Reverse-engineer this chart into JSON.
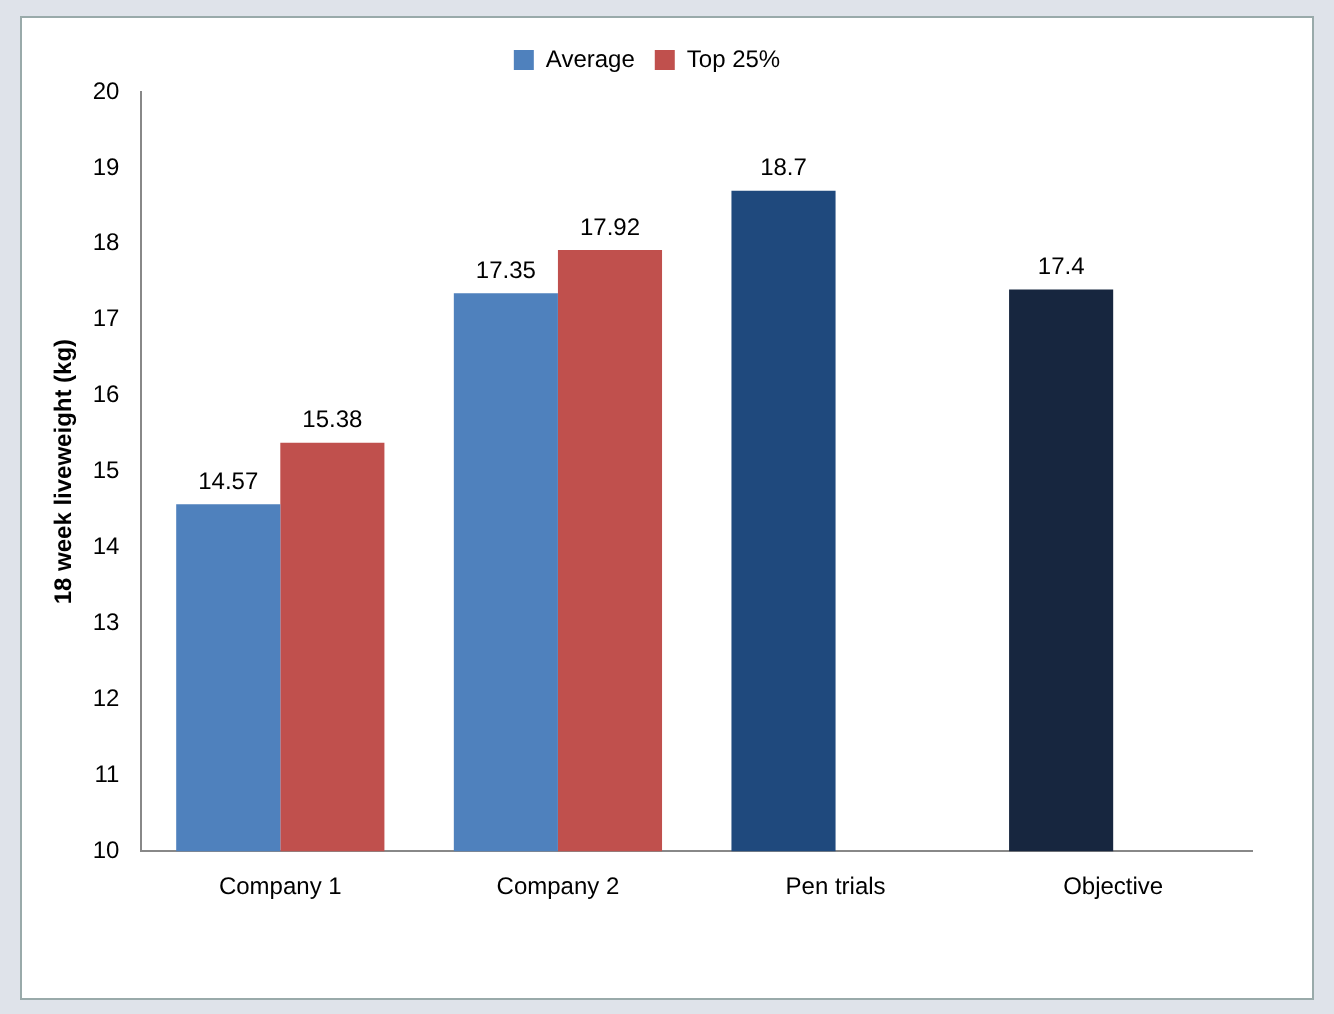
{
  "chart_data": {
    "type": "bar",
    "ylabel": "18 week liveweight (kg)",
    "categories": [
      "Company 1",
      "Company 2",
      "Pen trials",
      "Objective"
    ],
    "series": [
      {
        "name": "Average",
        "color": "#4f81bd",
        "colors": [
          "#4f81bd",
          "#4f81bd",
          "#1f497d",
          "#17263f"
        ],
        "values": [
          14.57,
          17.35,
          18.7,
          17.4
        ]
      },
      {
        "name": "Top 25%",
        "color": "#c0504d",
        "values": [
          15.38,
          17.92,
          null,
          null
        ]
      }
    ],
    "ylim": [
      10,
      20
    ],
    "yticks": [
      10,
      11,
      12,
      13,
      14,
      15,
      16,
      17,
      18,
      19,
      20
    ],
    "grid": false,
    "legend": "top",
    "data_labels": true
  }
}
